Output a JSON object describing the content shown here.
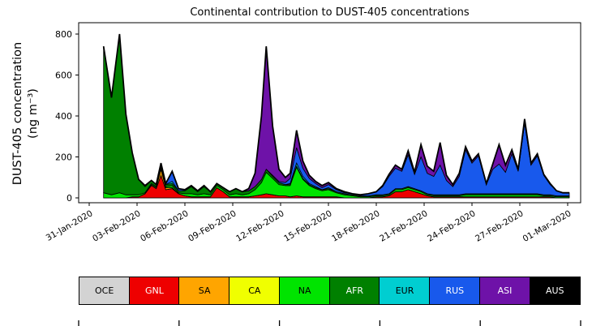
{
  "chart_data": {
    "type": "area",
    "stacked": true,
    "title": "Continental contribution to DUST-405 concentrations",
    "xlabel": "",
    "ylabel": "DUST-405 concentration (ng m⁻³)",
    "ylabel_lines": [
      "DUST-405 concentration",
      "(ng m⁻³)"
    ],
    "x_unit": "days since 31-Jan-2020",
    "ylim": [
      -25,
      855
    ],
    "yticks": [
      0,
      200,
      400,
      600,
      800
    ],
    "grid": false,
    "legend_position": "bottom",
    "xticks": [
      {
        "t": 0,
        "label": "31-Jan-2020"
      },
      {
        "t": 3,
        "label": "03-Feb-2020"
      },
      {
        "t": 6,
        "label": "06-Feb-2020"
      },
      {
        "t": 9,
        "label": "09-Feb-2020"
      },
      {
        "t": 12,
        "label": "12-Feb-2020"
      },
      {
        "t": 15,
        "label": "15-Feb-2020"
      },
      {
        "t": 18,
        "label": "18-Feb-2020"
      },
      {
        "t": 21,
        "label": "21-Feb-2020"
      },
      {
        "t": 24,
        "label": "24-Feb-2020"
      },
      {
        "t": 27,
        "label": "27-Feb-2020"
      },
      {
        "t": 30,
        "label": "01-Mar-2020"
      }
    ],
    "t": [
      0.9,
      1.4,
      1.9,
      2.3,
      2.7,
      3.1,
      3.5,
      3.9,
      4.2,
      4.5,
      4.8,
      5.2,
      5.6,
      6.0,
      6.4,
      6.8,
      7.2,
      7.6,
      8.0,
      8.4,
      8.8,
      9.2,
      9.6,
      10.0,
      10.4,
      10.8,
      11.1,
      11.5,
      11.9,
      12.3,
      12.6,
      13.0,
      13.4,
      13.8,
      14.2,
      14.6,
      15.0,
      15.5,
      16.0,
      16.5,
      17.0,
      17.5,
      18.0,
      18.4,
      18.8,
      19.2,
      19.6,
      20.0,
      20.4,
      20.8,
      21.2,
      21.6,
      22.0,
      22.4,
      22.8,
      23.2,
      23.6,
      24.0,
      24.4,
      24.9,
      25.3,
      25.7,
      26.1,
      26.5,
      26.9,
      27.3,
      27.7,
      28.1,
      28.5,
      28.9,
      29.3,
      29.7,
      30.1
    ],
    "series": [
      {
        "name": "OCE",
        "color": "#d3d3d3",
        "legend_text_color": "#000000",
        "values": [
          0,
          0,
          0,
          0,
          0,
          0,
          0,
          0,
          0,
          0,
          0,
          0,
          0,
          0,
          0,
          0,
          0,
          0,
          0,
          0,
          0,
          0,
          0,
          0,
          0,
          0,
          0,
          0,
          0,
          0,
          0,
          0,
          0,
          0,
          0,
          0,
          0,
          0,
          0,
          0,
          0,
          0,
          0,
          0,
          0,
          0,
          0,
          0,
          0,
          0,
          0,
          0,
          0,
          0,
          0,
          0,
          0,
          0,
          0,
          0,
          0,
          0,
          0,
          0,
          0,
          0,
          0,
          0,
          0,
          0,
          0,
          0,
          0
        ]
      },
      {
        "name": "GNL",
        "color": "#ee0000",
        "legend_text_color": "#ffffff",
        "values": [
          0,
          0,
          0,
          0,
          5,
          5,
          20,
          60,
          45,
          110,
          40,
          45,
          20,
          10,
          5,
          5,
          5,
          5,
          50,
          30,
          5,
          5,
          5,
          5,
          10,
          15,
          20,
          15,
          10,
          10,
          5,
          10,
          5,
          5,
          5,
          5,
          5,
          5,
          0,
          0,
          0,
          0,
          5,
          5,
          10,
          30,
          30,
          40,
          30,
          20,
          10,
          5,
          5,
          5,
          5,
          5,
          5,
          5,
          5,
          5,
          5,
          5,
          5,
          5,
          5,
          5,
          5,
          5,
          5,
          5,
          0,
          0,
          0
        ]
      },
      {
        "name": "SA",
        "color": "#ffa500",
        "legend_text_color": "#000000",
        "values": [
          0,
          0,
          0,
          0,
          0,
          0,
          0,
          5,
          5,
          30,
          10,
          5,
          0,
          0,
          0,
          0,
          0,
          0,
          0,
          0,
          0,
          0,
          0,
          0,
          0,
          0,
          0,
          0,
          0,
          0,
          0,
          0,
          0,
          0,
          0,
          0,
          0,
          0,
          0,
          0,
          0,
          0,
          0,
          0,
          0,
          0,
          0,
          0,
          0,
          0,
          0,
          0,
          0,
          0,
          0,
          0,
          0,
          0,
          0,
          0,
          0,
          0,
          0,
          0,
          0,
          0,
          0,
          0,
          0,
          0,
          0,
          0,
          0
        ]
      },
      {
        "name": "CA",
        "color": "#f0ff00",
        "legend_text_color": "#000000",
        "values": [
          0,
          0,
          0,
          0,
          0,
          0,
          0,
          0,
          0,
          0,
          0,
          0,
          0,
          0,
          0,
          0,
          0,
          0,
          0,
          0,
          0,
          0,
          0,
          0,
          0,
          0,
          0,
          0,
          0,
          0,
          0,
          0,
          0,
          0,
          0,
          0,
          0,
          0,
          0,
          0,
          0,
          0,
          0,
          0,
          0,
          0,
          0,
          0,
          0,
          0,
          0,
          0,
          0,
          0,
          0,
          0,
          0,
          0,
          0,
          0,
          0,
          0,
          0,
          0,
          0,
          0,
          0,
          0,
          0,
          0,
          0,
          0,
          0
        ]
      },
      {
        "name": "NA",
        "color": "#00e400",
        "legend_text_color": "#000000",
        "values": [
          25,
          15,
          25,
          15,
          10,
          10,
          5,
          5,
          5,
          10,
          5,
          10,
          5,
          10,
          15,
          10,
          15,
          10,
          10,
          10,
          10,
          15,
          10,
          15,
          30,
          60,
          105,
          80,
          55,
          50,
          55,
          140,
          85,
          55,
          40,
          30,
          35,
          20,
          15,
          10,
          5,
          5,
          5,
          5,
          5,
          10,
          10,
          10,
          10,
          10,
          5,
          5,
          5,
          5,
          5,
          5,
          10,
          10,
          10,
          10,
          10,
          10,
          10,
          10,
          10,
          10,
          10,
          10,
          5,
          5,
          5,
          5,
          5
        ]
      },
      {
        "name": "AFR",
        "color": "#008000",
        "legend_text_color": "#ffffff",
        "values": [
          715,
          475,
          775,
          395,
          205,
          75,
          30,
          15,
          10,
          15,
          10,
          10,
          10,
          15,
          35,
          15,
          35,
          15,
          10,
          10,
          15,
          25,
          15,
          15,
          15,
          15,
          15,
          10,
          10,
          5,
          5,
          5,
          5,
          5,
          5,
          5,
          5,
          5,
          5,
          5,
          5,
          5,
          5,
          5,
          5,
          5,
          5,
          5,
          5,
          5,
          5,
          5,
          5,
          5,
          5,
          5,
          5,
          5,
          5,
          5,
          5,
          5,
          5,
          5,
          5,
          5,
          5,
          5,
          5,
          5,
          5,
          5,
          5
        ]
      },
      {
        "name": "EUR",
        "color": "#00ced1",
        "legend_text_color": "#000000",
        "values": [
          0,
          0,
          0,
          0,
          0,
          0,
          0,
          0,
          0,
          0,
          0,
          10,
          0,
          0,
          0,
          0,
          0,
          0,
          0,
          0,
          0,
          0,
          0,
          0,
          0,
          0,
          0,
          0,
          0,
          0,
          5,
          15,
          10,
          5,
          5,
          0,
          5,
          0,
          0,
          0,
          0,
          0,
          0,
          0,
          0,
          0,
          0,
          0,
          0,
          0,
          0,
          0,
          0,
          0,
          0,
          0,
          0,
          0,
          0,
          0,
          0,
          0,
          0,
          0,
          0,
          0,
          0,
          0,
          0,
          0,
          0,
          0,
          0
        ]
      },
      {
        "name": "RUS",
        "color": "#1859ec",
        "legend_text_color": "#ffffff",
        "values": [
          0,
          0,
          0,
          0,
          0,
          0,
          0,
          0,
          0,
          5,
          5,
          50,
          10,
          5,
          5,
          5,
          0,
          0,
          0,
          0,
          0,
          0,
          0,
          0,
          0,
          0,
          0,
          5,
          5,
          10,
          25,
          75,
          40,
          25,
          15,
          10,
          15,
          10,
          5,
          5,
          5,
          10,
          15,
          40,
          85,
          100,
          85,
          155,
          70,
          165,
          100,
          90,
          145,
          70,
          40,
          90,
          215,
          150,
          185,
          45,
          120,
          145,
          105,
          195,
          110,
          345,
          140,
          185,
          95,
          50,
          25,
          15,
          15
        ]
      },
      {
        "name": "ASI",
        "color": "#6e12a8",
        "legend_text_color": "#ffffff",
        "values": [
          0,
          0,
          0,
          0,
          0,
          0,
          5,
          0,
          0,
          0,
          0,
          0,
          0,
          0,
          0,
          0,
          5,
          0,
          0,
          0,
          0,
          0,
          0,
          10,
          65,
          310,
          600,
          240,
          60,
          25,
          25,
          85,
          35,
          15,
          10,
          10,
          10,
          5,
          5,
          0,
          0,
          0,
          0,
          5,
          10,
          15,
          10,
          20,
          10,
          60,
          35,
          25,
          110,
          25,
          10,
          15,
          15,
          10,
          10,
          5,
          25,
          95,
          35,
          20,
          10,
          20,
          10,
          10,
          5,
          5,
          0,
          0,
          0
        ]
      },
      {
        "name": "AUS",
        "color": "#000000",
        "legend_text_color": "#ffffff",
        "values": [
          0,
          0,
          0,
          0,
          0,
          0,
          0,
          0,
          0,
          0,
          0,
          0,
          0,
          0,
          0,
          0,
          0,
          0,
          0,
          0,
          0,
          0,
          0,
          0,
          0,
          0,
          0,
          0,
          0,
          0,
          0,
          0,
          0,
          0,
          0,
          0,
          0,
          0,
          0,
          0,
          0,
          0,
          0,
          0,
          0,
          0,
          0,
          0,
          0,
          0,
          0,
          0,
          0,
          0,
          0,
          0,
          0,
          0,
          0,
          0,
          0,
          0,
          0,
          0,
          0,
          0,
          0,
          0,
          0,
          0,
          0,
          0,
          0
        ]
      }
    ]
  }
}
